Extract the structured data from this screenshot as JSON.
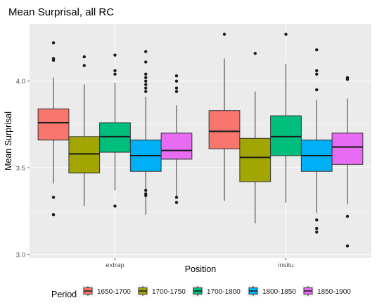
{
  "chart_data": {
    "type": "box",
    "title": "Mean Surprisal, all RC",
    "xlabel": "Position",
    "ylabel": "Mean Surprisal",
    "categories": [
      "extrap",
      "insitu"
    ],
    "ylim": [
      2.98,
      4.33
    ],
    "yticks": [
      3.0,
      3.5,
      4.0
    ],
    "ytick_labels": [
      "3.0",
      "3.5",
      "4.0"
    ],
    "grid": true,
    "legend": {
      "title": "Period",
      "position": "bottom"
    },
    "series": [
      {
        "name": "1650-1700",
        "color": "#F8766D",
        "boxes": [
          {
            "category": "extrap",
            "whisker_low": 3.41,
            "q1": 3.66,
            "median": 3.76,
            "q3": 3.84,
            "whisker_high": 4.02,
            "outliers": [
              4.22,
              4.13,
              4.12,
              3.33,
              3.23
            ]
          },
          {
            "category": "insitu",
            "whisker_low": 3.31,
            "q1": 3.61,
            "median": 3.71,
            "q3": 3.83,
            "whisker_high": 4.13,
            "outliers": [
              4.27
            ]
          }
        ]
      },
      {
        "name": "1700-1750",
        "color": "#A3A500",
        "boxes": [
          {
            "category": "extrap",
            "whisker_low": 3.28,
            "q1": 3.47,
            "median": 3.58,
            "q3": 3.68,
            "whisker_high": 3.98,
            "outliers": [
              4.14,
              4.09
            ]
          },
          {
            "category": "insitu",
            "whisker_low": 3.18,
            "q1": 3.42,
            "median": 3.56,
            "q3": 3.67,
            "whisker_high": 3.94,
            "outliers": [
              4.16
            ]
          }
        ]
      },
      {
        "name": "1700-1800",
        "color": "#00BF7D",
        "boxes": [
          {
            "category": "extrap",
            "whisker_low": 3.37,
            "q1": 3.59,
            "median": 3.68,
            "q3": 3.76,
            "whisker_high": 3.99,
            "outliers": [
              4.15,
              4.06,
              4.04,
              3.28
            ]
          },
          {
            "category": "insitu",
            "whisker_low": 3.3,
            "q1": 3.57,
            "median": 3.68,
            "q3": 3.8,
            "whisker_high": 4.1,
            "outliers": [
              4.27
            ]
          }
        ]
      },
      {
        "name": "1800-1850",
        "color": "#00B0F6",
        "boxes": [
          {
            "category": "extrap",
            "whisker_low": 3.23,
            "q1": 3.48,
            "median": 3.57,
            "q3": 3.66,
            "whisker_high": 3.91,
            "outliers": [
              4.17,
              4.11,
              4.04,
              4.02,
              4.0,
              3.98,
              3.96,
              3.94,
              3.37,
              3.35,
              3.34
            ]
          },
          {
            "category": "insitu",
            "whisker_low": 3.24,
            "q1": 3.48,
            "median": 3.57,
            "q3": 3.66,
            "whisker_high": 3.89,
            "outliers": [
              4.18,
              4.06,
              4.04,
              3.95,
              3.2,
              3.15,
              3.13
            ]
          }
        ]
      },
      {
        "name": "1850-1900",
        "color": "#E76BF3",
        "boxes": [
          {
            "category": "extrap",
            "whisker_low": 3.33,
            "q1": 3.55,
            "median": 3.6,
            "q3": 3.7,
            "whisker_high": 3.86,
            "outliers": [
              4.03,
              4.0,
              3.96,
              3.94,
              3.33,
              3.3
            ]
          },
          {
            "category": "insitu",
            "whisker_low": 3.29,
            "q1": 3.52,
            "median": 3.62,
            "q3": 3.7,
            "whisker_high": 3.9,
            "outliers": [
              4.02,
              4.01,
              3.22,
              3.05
            ]
          }
        ]
      }
    ]
  }
}
